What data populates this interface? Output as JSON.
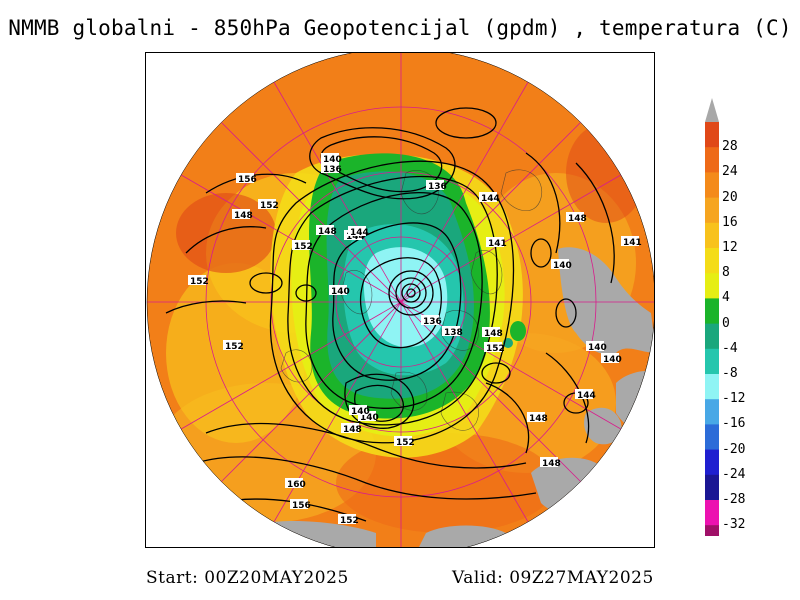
{
  "title": "NMMB globalni - 850hPa Geopotencijal (gpdm) , temperatura (C)",
  "footer": {
    "start": "Start: 00Z20MAY2025",
    "valid": "Valid: 09Z27MAY2025"
  },
  "colorbar": {
    "labels": [
      "28",
      "24",
      "20",
      "16",
      "12",
      "8",
      "4",
      "0",
      "-4",
      "-8",
      "-12",
      "-16",
      "-20",
      "-24",
      "-28",
      "-32"
    ],
    "colors": [
      "#e04818",
      "#ee6a18",
      "#f48a1a",
      "#f6a520",
      "#f8c21c",
      "#f4dc18",
      "#e6ee14",
      "#1bb42a",
      "#1aa77c",
      "#25c6ad",
      "#8ff4f4",
      "#48a8e6",
      "#2c6cd8",
      "#1f1fd0",
      "#1b1694",
      "#ec12b0",
      "#a01068"
    ],
    "top_arrow_color": "#a8a8a8",
    "bottom_arrow_color": "#a01068"
  },
  "contour_labels": [
    "140",
    "136",
    "156",
    "152",
    "148",
    "144",
    "136",
    "144",
    "148",
    "141",
    "152",
    "148",
    "152",
    "144",
    "141",
    "140",
    "140",
    "136",
    "138",
    "148",
    "152",
    "140",
    "140",
    "152",
    "140",
    "144",
    "148",
    "140",
    "148",
    "152",
    "148",
    "160",
    "156",
    "152"
  ],
  "colors": {
    "land_gray": "#a9a9a9",
    "grid_line": "#d81c8c",
    "contour": "#000000"
  }
}
